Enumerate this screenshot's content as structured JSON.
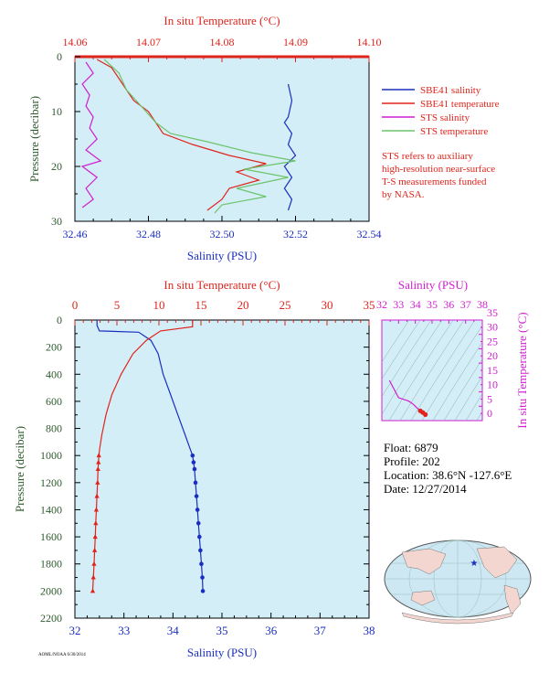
{
  "colors": {
    "plot_bg": "#d4eef8",
    "red": "#e0241c",
    "blue": "#1a2fbf",
    "magenta": "#d01ed0",
    "green": "#6cc46c",
    "salmon": "#f0948c",
    "axis_green": "#2e5a2e",
    "land": "#f4d6d0",
    "ocean": "#cde8f2"
  },
  "chart_data": [
    {
      "id": "top",
      "type": "line",
      "xlabel": "Salinity (PSU)",
      "x2label": "In situ Temperature (°C)",
      "ylabel": "Pressure (decibar)",
      "xlim": [
        32.46,
        32.54
      ],
      "xticks": [
        "32.46",
        "32.48",
        "32.50",
        "32.52",
        "32.54"
      ],
      "x2lim": [
        14.06,
        14.1
      ],
      "x2ticks": [
        "14.06",
        "14.07",
        "14.08",
        "14.09",
        "14.10"
      ],
      "ylim": [
        0,
        30
      ],
      "yticks": [
        "0",
        "10",
        "20",
        "30"
      ],
      "legend": [
        {
          "name": "SBE41 salinity",
          "color": "#1a2fbf"
        },
        {
          "name": "SBE41 temperature",
          "color": "#e0241c"
        },
        {
          "name": "STS salinity",
          "color": "#d01ed0"
        },
        {
          "name": "STS temperature",
          "color": "#6cc46c"
        }
      ],
      "note": [
        "STS refers to auxiliary",
        "high-resolution near-surface",
        "T-S measurements funded",
        "by NASA."
      ],
      "series": [
        {
          "name": "SBE41 salinity",
          "axis": "salinity",
          "points": [
            [
              32.518,
              5
            ],
            [
              32.519,
              8
            ],
            [
              32.518,
              11
            ],
            [
              32.517,
              12
            ],
            [
              32.519,
              14
            ],
            [
              32.518,
              16
            ],
            [
              32.52,
              18
            ],
            [
              32.517,
              20
            ],
            [
              32.519,
              22
            ],
            [
              32.517,
              24
            ],
            [
              32.519,
              26
            ],
            [
              32.518,
              28
            ]
          ]
        },
        {
          "name": "SBE41 temperature",
          "axis": "temperature",
          "points": [
            [
              14.063,
              0.5
            ],
            [
              14.065,
              2
            ],
            [
              14.066,
              4
            ],
            [
              14.067,
              6
            ],
            [
              14.068,
              8
            ],
            [
              14.07,
              10
            ],
            [
              14.071,
              12
            ],
            [
              14.072,
              14
            ],
            [
              14.076,
              16
            ],
            [
              14.081,
              18
            ],
            [
              14.086,
              19.5
            ],
            [
              14.082,
              21
            ],
            [
              14.085,
              22.5
            ],
            [
              14.081,
              24
            ],
            [
              14.08,
              26
            ],
            [
              14.078,
              28
            ]
          ]
        },
        {
          "name": "STS salinity",
          "axis": "salinity",
          "points": [
            [
              32.463,
              1
            ],
            [
              32.465,
              3
            ],
            [
              32.462,
              5
            ],
            [
              32.464,
              7
            ],
            [
              32.463,
              9
            ],
            [
              32.465,
              11
            ],
            [
              32.464,
              13
            ],
            [
              32.466,
              15
            ],
            [
              32.463,
              17
            ],
            [
              32.467,
              19
            ],
            [
              32.462,
              20
            ],
            [
              32.466,
              22
            ],
            [
              32.463,
              24
            ],
            [
              32.465,
              26
            ],
            [
              32.462,
              27.5
            ]
          ]
        },
        {
          "name": "STS temperature",
          "axis": "temperature",
          "points": [
            [
              14.064,
              0.5
            ],
            [
              14.066,
              3
            ],
            [
              14.067,
              6
            ],
            [
              14.069,
              9
            ],
            [
              14.071,
              12
            ],
            [
              14.073,
              14
            ],
            [
              14.078,
              15.5
            ],
            [
              14.084,
              17.5
            ],
            [
              14.09,
              19
            ],
            [
              14.083,
              20.5
            ],
            [
              14.089,
              22
            ],
            [
              14.082,
              24
            ],
            [
              14.086,
              25.5
            ],
            [
              14.08,
              27
            ],
            [
              14.079,
              28.5
            ]
          ]
        }
      ]
    },
    {
      "id": "main",
      "type": "line",
      "xlabel": "Salinity (PSU)",
      "x2label": "In situ Temperature (°C)",
      "ylabel": "Pressure (decibar)",
      "xlim": [
        32,
        38
      ],
      "xticks": [
        "32",
        "33",
        "34",
        "35",
        "36",
        "37",
        "38"
      ],
      "x2lim": [
        0,
        35
      ],
      "x2ticks": [
        "0",
        "5",
        "10",
        "15",
        "20",
        "25",
        "30",
        "35"
      ],
      "ylim": [
        0,
        2200
      ],
      "yticks": [
        "0",
        "200",
        "400",
        "600",
        "800",
        "1000",
        "1200",
        "1400",
        "1600",
        "1800",
        "2000",
        "2200"
      ],
      "series": [
        {
          "name": "salinity",
          "axis": "salinity",
          "marker": "circle",
          "points": [
            [
              32.45,
              0
            ],
            [
              32.45,
              40
            ],
            [
              32.5,
              80
            ],
            [
              33.3,
              90
            ],
            [
              33.55,
              150
            ],
            [
              33.7,
              250
            ],
            [
              33.8,
              400
            ],
            [
              33.95,
              550
            ],
            [
              34.1,
              700
            ],
            [
              34.25,
              850
            ],
            [
              34.35,
              950
            ],
            [
              34.4,
              1000
            ],
            [
              34.42,
              1050
            ],
            [
              34.44,
              1100
            ],
            [
              34.46,
              1200
            ],
            [
              34.48,
              1300
            ],
            [
              34.5,
              1400
            ],
            [
              34.52,
              1500
            ],
            [
              34.54,
              1600
            ],
            [
              34.56,
              1700
            ],
            [
              34.58,
              1800
            ],
            [
              34.6,
              1900
            ],
            [
              34.61,
              2000
            ]
          ]
        },
        {
          "name": "temperature",
          "axis": "temperature",
          "marker": "triangle",
          "points": [
            [
              14.0,
              0
            ],
            [
              14.0,
              50
            ],
            [
              10.2,
              80
            ],
            [
              8.5,
              150
            ],
            [
              6.9,
              250
            ],
            [
              5.5,
              400
            ],
            [
              4.4,
              550
            ],
            [
              3.7,
              700
            ],
            [
              3.2,
              850
            ],
            [
              2.95,
              950
            ],
            [
              2.85,
              1000
            ],
            [
              2.8,
              1050
            ],
            [
              2.75,
              1100
            ],
            [
              2.7,
              1200
            ],
            [
              2.62,
              1300
            ],
            [
              2.55,
              1400
            ],
            [
              2.48,
              1500
            ],
            [
              2.42,
              1600
            ],
            [
              2.35,
              1700
            ],
            [
              2.28,
              1800
            ],
            [
              2.2,
              1900
            ],
            [
              2.12,
              2000
            ]
          ]
        }
      ]
    },
    {
      "id": "ts",
      "type": "line",
      "xlabel": "Salinity (PSU)",
      "ylabel": "In situ Temperature (°C)",
      "xlim": [
        32,
        38
      ],
      "xticks": [
        "32",
        "33",
        "34",
        "35",
        "36",
        "37",
        "38"
      ],
      "ylim": [
        0,
        35
      ],
      "yticks": [
        "0",
        "5",
        "10",
        "15",
        "20",
        "25",
        "30",
        "35"
      ],
      "series": [
        {
          "name": "T-S",
          "points": [
            [
              32.45,
              14.0
            ],
            [
              33.0,
              8.0
            ],
            [
              33.6,
              6.8
            ],
            [
              33.9,
              5.6
            ],
            [
              34.1,
              4.4
            ],
            [
              34.3,
              3.4
            ],
            [
              34.45,
              2.8
            ],
            [
              34.6,
              2.1
            ]
          ]
        }
      ]
    }
  ],
  "info": {
    "float": "Float:  6879",
    "profile": "Profile:  202",
    "location": "Location:  38.6°N  -127.6°E",
    "date": "Date:  12/27/2014"
  },
  "footer": "AOML/NOAA  6/30/2014"
}
